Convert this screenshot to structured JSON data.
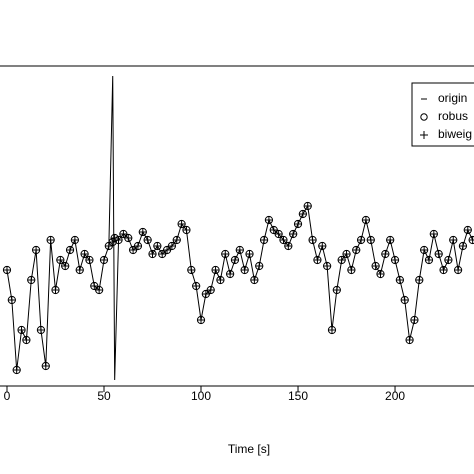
{
  "chart_data": {
    "type": "line",
    "x_label": "Time [s]",
    "x": [
      0,
      2.5,
      5,
      7.5,
      10,
      12.5,
      15,
      17.5,
      20,
      22.5,
      25,
      27.5,
      30,
      32.5,
      35,
      37.5,
      40,
      42.5,
      45,
      47.5,
      50,
      52.5,
      54.5,
      55.5,
      57.5,
      60,
      62.5,
      65,
      67.5,
      70,
      72.5,
      75,
      77.5,
      80,
      82.5,
      85,
      87.5,
      90,
      92.5,
      95,
      97.5,
      100,
      102.5,
      105,
      107.5,
      110,
      112.5,
      115,
      117.5,
      120,
      122.5,
      125,
      127.5,
      130,
      132.5,
      135,
      137.5,
      140,
      142.5,
      145,
      147.5,
      150,
      152.5,
      155,
      157.5,
      160,
      162.5,
      165,
      167.5,
      170,
      172.5,
      175,
      177.5,
      180,
      182.5,
      185,
      187.5,
      190,
      192.5,
      195,
      197.5,
      200,
      202.5,
      205,
      207.5,
      210,
      212.5,
      215,
      217.5,
      220,
      222.5,
      225,
      227.5,
      230,
      232.5,
      235,
      237.5,
      240
    ],
    "series": [
      {
        "name": "origin",
        "color": "#000000",
        "marker": "line",
        "values": [
          -1.1,
          -1.85,
          -3.6,
          -2.6,
          -2.85,
          -1.35,
          -0.6,
          -2.6,
          -3.5,
          -0.35,
          -1.6,
          -0.85,
          -1,
          -0.6,
          -0.35,
          -1.1,
          -0.7,
          -0.85,
          -1.5,
          -1.6,
          -0.85,
          -0.5,
          3.75,
          -3.85,
          -0.35,
          -0.2,
          -0.3,
          -0.6,
          -0.5,
          -0.15,
          -0.35,
          -0.7,
          -0.5,
          -0.7,
          -0.6,
          -0.5,
          -0.35,
          0.05,
          -0.1,
          -1.1,
          -1.5,
          -2.35,
          -1.7,
          -1.6,
          -1.1,
          -1.35,
          -0.7,
          -1.2,
          -0.85,
          -0.6,
          -1.1,
          -0.7,
          -1.35,
          -1,
          -0.35,
          0.15,
          -0.1,
          -0.2,
          -0.35,
          -0.5,
          -0.2,
          0.05,
          0.3,
          0.5,
          -0.35,
          -0.85,
          -0.5,
          -1,
          -2.6,
          -1.6,
          -0.85,
          -0.7,
          -1.1,
          -0.6,
          -0.35,
          0.15,
          -0.35,
          -1,
          -1.2,
          -0.7,
          -0.35,
          -0.85,
          -1.35,
          -1.85,
          -2.85,
          -2.35,
          -1.35,
          -0.6,
          -0.85,
          -0.2,
          -0.7,
          -1.1,
          -0.85,
          -0.35,
          -1.1,
          -0.5,
          -0.1,
          -0.35
        ]
      },
      {
        "name": "robus",
        "color": "#000000",
        "marker": "circle",
        "values": [
          -1.1,
          -1.85,
          -3.6,
          -2.6,
          -2.85,
          -1.35,
          -0.6,
          -2.6,
          -3.5,
          -0.35,
          -1.6,
          -0.85,
          -1,
          -0.6,
          -0.35,
          -1.1,
          -0.7,
          -0.85,
          -1.5,
          -1.6,
          -0.85,
          -0.5,
          -0.4,
          -0.3,
          -0.35,
          -0.2,
          -0.3,
          -0.6,
          -0.5,
          -0.15,
          -0.35,
          -0.7,
          -0.5,
          -0.7,
          -0.6,
          -0.5,
          -0.35,
          0.05,
          -0.1,
          -1.1,
          -1.5,
          -2.35,
          -1.7,
          -1.6,
          -1.1,
          -1.35,
          -0.7,
          -1.2,
          -0.85,
          -0.6,
          -1.1,
          -0.7,
          -1.35,
          -1,
          -0.35,
          0.15,
          -0.1,
          -0.2,
          -0.35,
          -0.5,
          -0.2,
          0.05,
          0.3,
          0.5,
          -0.35,
          -0.85,
          -0.5,
          -1,
          -2.6,
          -1.6,
          -0.85,
          -0.7,
          -1.1,
          -0.6,
          -0.35,
          0.15,
          -0.35,
          -1,
          -1.2,
          -0.7,
          -0.35,
          -0.85,
          -1.35,
          -1.85,
          -2.85,
          -2.35,
          -1.35,
          -0.6,
          -0.85,
          -0.2,
          -0.7,
          -1.1,
          -0.85,
          -0.35,
          -1.1,
          -0.5,
          -0.1,
          -0.35
        ]
      },
      {
        "name": "biweig",
        "color": "#000000",
        "marker": "plus",
        "values": [
          -1.1,
          -1.85,
          -3.6,
          -2.6,
          -2.85,
          -1.35,
          -0.6,
          -2.6,
          -3.5,
          -0.35,
          -1.6,
          -0.85,
          -1,
          -0.6,
          -0.35,
          -1.1,
          -0.7,
          -0.85,
          -1.5,
          -1.6,
          -0.85,
          -0.5,
          -0.4,
          -0.3,
          -0.35,
          -0.2,
          -0.3,
          -0.6,
          -0.5,
          -0.15,
          -0.35,
          -0.7,
          -0.5,
          -0.7,
          -0.6,
          -0.5,
          -0.35,
          0.05,
          -0.1,
          -1.1,
          -1.5,
          -2.35,
          -1.7,
          -1.6,
          -1.1,
          -1.35,
          -0.7,
          -1.2,
          -0.85,
          -0.6,
          -1.1,
          -0.7,
          -1.35,
          -1,
          -0.35,
          0.15,
          -0.1,
          -0.2,
          -0.35,
          -0.5,
          -0.2,
          0.05,
          0.3,
          0.5,
          -0.35,
          -0.85,
          -0.5,
          -1,
          -2.6,
          -1.6,
          -0.85,
          -0.7,
          -1.1,
          -0.6,
          -0.35,
          0.15,
          -0.35,
          -1,
          -1.2,
          -0.7,
          -0.35,
          -0.85,
          -1.35,
          -1.85,
          -2.85,
          -2.35,
          -1.35,
          -0.6,
          -0.85,
          -0.2,
          -0.7,
          -1.1,
          -0.85,
          -0.35,
          -1.1,
          -0.5,
          -0.1,
          -0.35
        ]
      }
    ],
    "xlim": [
      -3.6,
      240.7
    ],
    "xticks": [
      0,
      50,
      100,
      150,
      200
    ],
    "ylim": [
      -4,
      4
    ],
    "legend": "top-right"
  }
}
